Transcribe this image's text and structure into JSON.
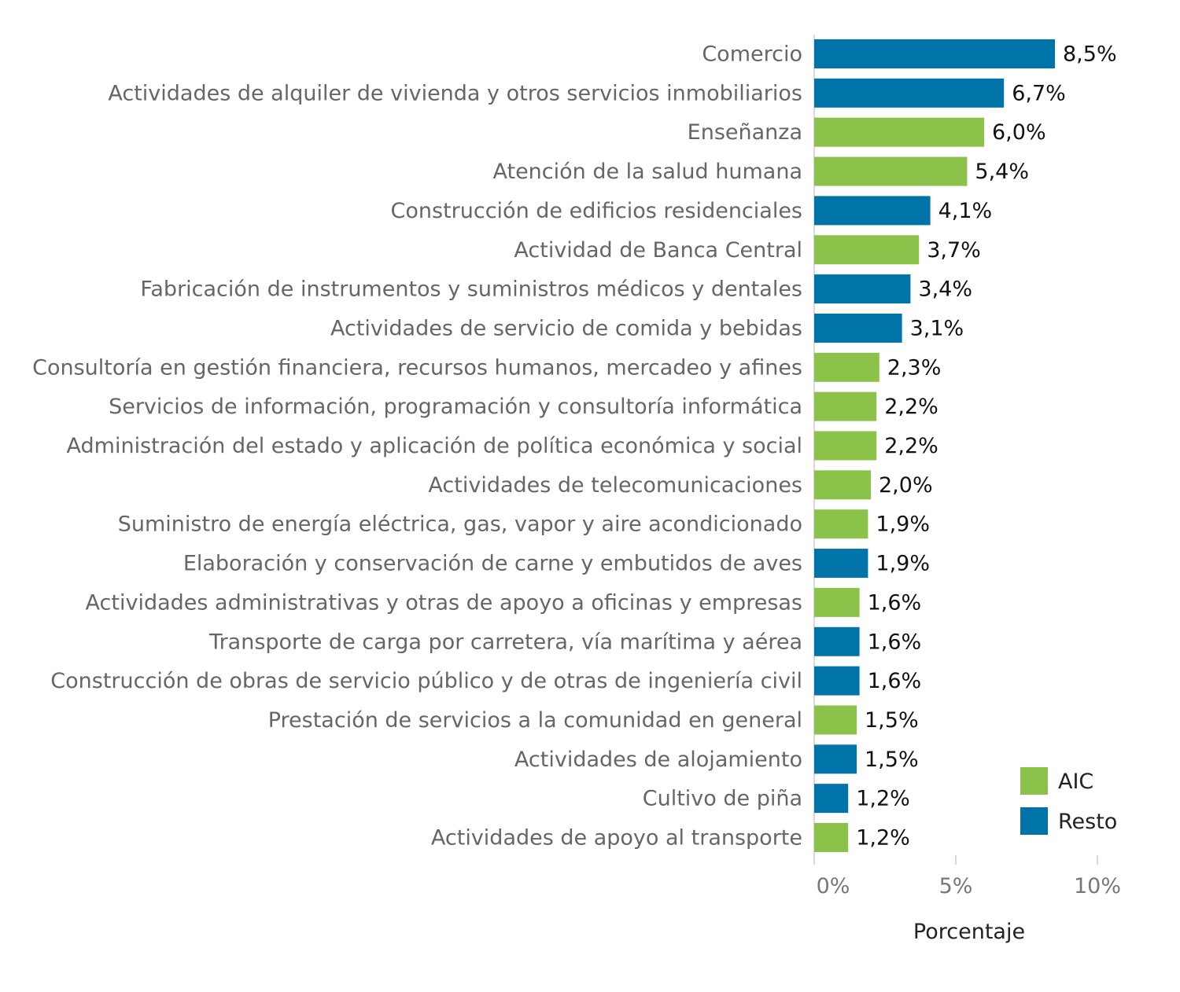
{
  "chart_data": {
    "type": "bar",
    "orientation": "horizontal",
    "categories": [
      "Comercio",
      "Actividades de alquiler de vivienda y otros servicios inmobiliarios",
      "Enseñanza",
      "Atención de la salud humana",
      "Construcción de edificios residenciales",
      "Actividad de Banca Central",
      "Fabricación de instrumentos y suministros médicos y dentales",
      "Actividades de servicio de comida y bebidas",
      "Consultoría en gestión financiera, recursos humanos, mercadeo y afines",
      "Servicios de información, programación y consultoría informática",
      "Administración del estado y aplicación de política económica y social",
      "Actividades de telecomunicaciones",
      "Suministro de energía eléctrica, gas, vapor y aire acondicionado",
      "Elaboración y conservación de carne y embutidos de aves",
      "Actividades administrativas y otras de apoyo a oficinas y empresas",
      "Transporte de carga por carretera, vía marítima y aérea",
      "Construcción de obras de servicio público y de otras de ingeniería civil",
      "Prestación de servicios a la comunidad en general",
      "Actividades de alojamiento",
      "Cultivo de piña",
      "Actividades de apoyo al transporte"
    ],
    "values": [
      8.5,
      6.7,
      6.0,
      5.4,
      4.1,
      3.7,
      3.4,
      3.1,
      2.3,
      2.2,
      2.2,
      2.0,
      1.9,
      1.9,
      1.6,
      1.6,
      1.6,
      1.5,
      1.5,
      1.2,
      1.2
    ],
    "value_labels": [
      "8,5%",
      "6,7%",
      "6,0%",
      "5,4%",
      "4,1%",
      "3,7%",
      "3,4%",
      "3,1%",
      "2,3%",
      "2,2%",
      "2,2%",
      "2,0%",
      "1,9%",
      "1,9%",
      "1,6%",
      "1,6%",
      "1,6%",
      "1,5%",
      "1,5%",
      "1,2%",
      "1,2%"
    ],
    "groups": [
      "Resto",
      "Resto",
      "AIC",
      "AIC",
      "Resto",
      "AIC",
      "Resto",
      "Resto",
      "AIC",
      "AIC",
      "AIC",
      "AIC",
      "AIC",
      "Resto",
      "AIC",
      "Resto",
      "Resto",
      "AIC",
      "Resto",
      "Resto",
      "AIC"
    ],
    "legend": [
      {
        "name": "AIC",
        "color": "#8bc34a"
      },
      {
        "name": "Resto",
        "color": "#0073a8"
      }
    ],
    "legend_position": "bottom-right",
    "xlabel": "Porcentaje",
    "xlim": [
      0,
      10
    ],
    "x_ticks": [
      0,
      5,
      10
    ],
    "x_tick_labels": [
      "0%",
      "5%",
      "10%"
    ],
    "grid": false
  }
}
